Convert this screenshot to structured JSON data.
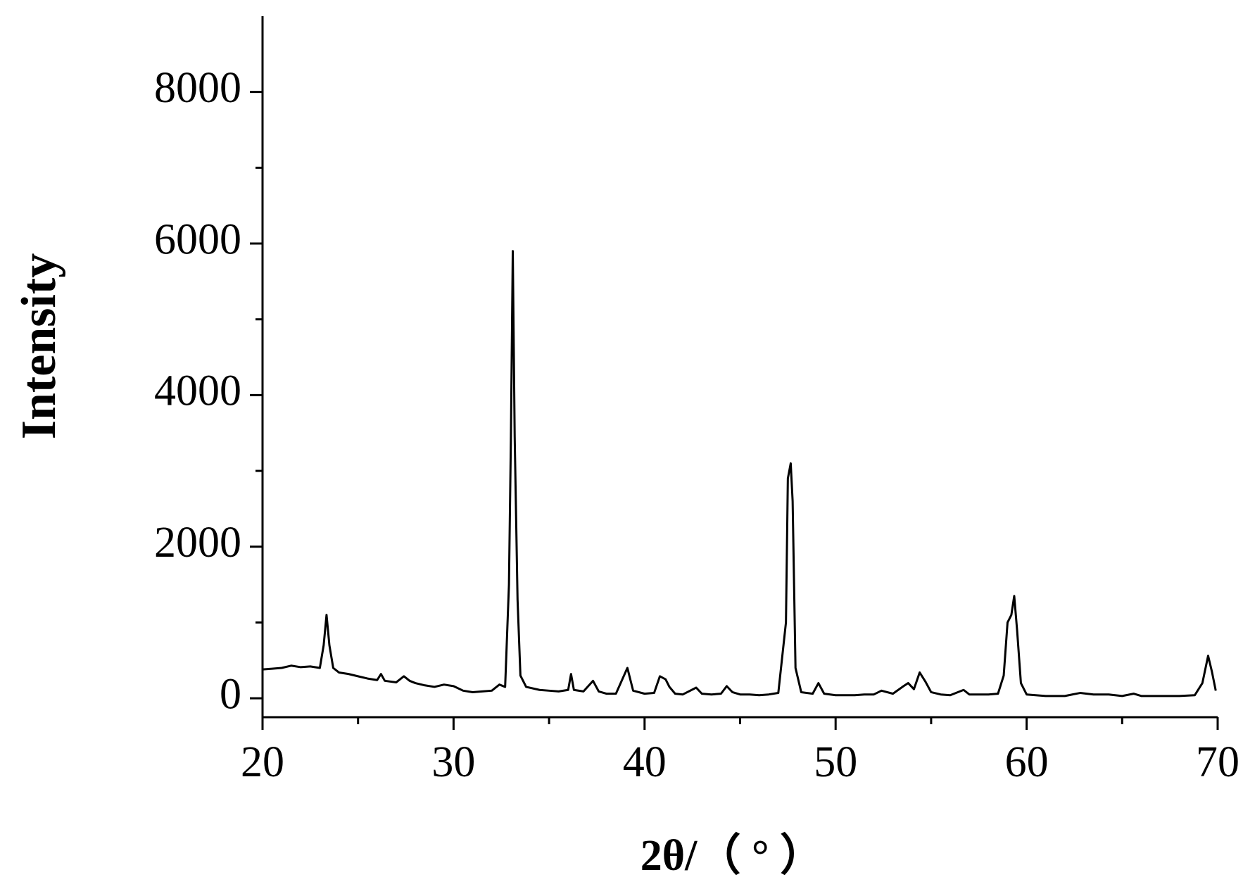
{
  "chart_data": {
    "type": "line",
    "x_label": "2θ/（ ° ）",
    "y_label": "Intensity",
    "color": "#000000",
    "xlim": [
      20,
      70
    ],
    "xticks": [
      20,
      30,
      40,
      50,
      60,
      70
    ],
    "xminor_ticks": [
      25,
      35,
      45,
      55,
      65
    ],
    "ylim": [
      -250,
      9000
    ],
    "yticks": [
      0,
      2000,
      4000,
      6000,
      8000
    ],
    "yminor_ticks": [
      1000,
      3000,
      5000,
      7000
    ],
    "grid": false,
    "x": [
      20,
      20.5,
      21,
      21.5,
      22,
      22.5,
      23,
      23.2,
      23.35,
      23.5,
      23.7,
      24,
      24.5,
      25,
      25.5,
      26,
      26.2,
      26.4,
      27,
      27.4,
      27.7,
      28,
      28.5,
      29,
      29.5,
      30,
      30.5,
      31,
      31.5,
      32,
      32.4,
      32.7,
      32.9,
      33.0,
      33.1,
      33.2,
      33.35,
      33.5,
      33.8,
      34.5,
      35,
      35.5,
      36,
      36.15,
      36.3,
      36.8,
      37.3,
      37.6,
      38,
      38.5,
      39.1,
      39.4,
      40,
      40.5,
      40.8,
      41.1,
      41.3,
      41.6,
      42,
      42.7,
      43,
      43.5,
      44,
      44.3,
      44.6,
      45,
      45.5,
      46,
      46.5,
      47,
      47.4,
      47.5,
      47.65,
      47.75,
      47.9,
      48.2,
      48.8,
      49.1,
      49.4,
      50,
      51,
      51.5,
      52,
      52.4,
      53,
      53.5,
      53.8,
      54.1,
      54.4,
      54.7,
      55,
      55.5,
      56,
      56.7,
      57,
      58,
      58.5,
      58.8,
      59.0,
      59.2,
      59.35,
      59.5,
      59.7,
      60,
      61,
      62,
      62.8,
      63.5,
      64.3,
      65,
      65.6,
      66,
      67,
      68,
      68.8,
      69.2,
      69.5,
      69.7,
      69.9
    ],
    "values": [
      380,
      390,
      400,
      430,
      410,
      420,
      400,
      700,
      1100,
      700,
      400,
      340,
      320,
      290,
      260,
      240,
      320,
      230,
      210,
      290,
      230,
      200,
      170,
      150,
      180,
      160,
      100,
      80,
      90,
      100,
      180,
      150,
      1500,
      3400,
      5900,
      3450,
      1300,
      300,
      150,
      110,
      100,
      90,
      110,
      320,
      110,
      90,
      230,
      90,
      60,
      60,
      400,
      100,
      60,
      70,
      290,
      250,
      150,
      60,
      50,
      140,
      60,
      50,
      60,
      160,
      80,
      50,
      50,
      40,
      50,
      70,
      1000,
      2900,
      3100,
      2600,
      400,
      80,
      60,
      200,
      60,
      40,
      40,
      50,
      50,
      100,
      60,
      150,
      200,
      120,
      340,
      220,
      80,
      50,
      40,
      110,
      50,
      50,
      60,
      300,
      1000,
      1100,
      1350,
      900,
      200,
      50,
      30,
      30,
      70,
      50,
      50,
      30,
      60,
      30,
      30,
      30,
      40,
      200,
      560,
      350,
      100
    ]
  }
}
